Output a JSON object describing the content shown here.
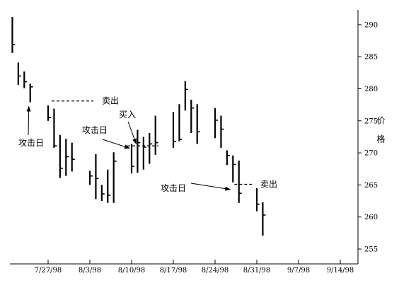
{
  "chart_data": {
    "type": "ohlc",
    "title": "",
    "xlabel": "",
    "ylabel": "价格",
    "ylim": [
      253,
      292
    ],
    "y_ticks": [
      255,
      260,
      265,
      270,
      275,
      280,
      285,
      290
    ],
    "y_tick_labels": [
      "255",
      "260",
      "265",
      "270",
      "275",
      "280",
      "285",
      "290"
    ],
    "x_tick_labels": [
      "7/27/98",
      "8/3/98",
      "8/10/98",
      "8/17/98",
      "8/24/98",
      "8/31/98",
      "9/7/98",
      "9/14/98"
    ],
    "x_ticks": [
      "1998-07-27",
      "1998-08-03",
      "1998-08-10",
      "1998-08-17",
      "1998-08-24",
      "1998-08-31",
      "1998-09-07",
      "1998-09-14"
    ],
    "x_range": [
      "1998-07-20",
      "1998-09-15"
    ],
    "grid": false,
    "bars": [
      {
        "date": "1998-07-21",
        "high": 291.2,
        "low": 285.6,
        "close": 286.9
      },
      {
        "date": "1998-07-22",
        "high": 284.1,
        "low": 280.6,
        "close": 282.0
      },
      {
        "date": "1998-07-23",
        "high": 282.7,
        "low": 280.1,
        "close": 281.1
      },
      {
        "date": "1998-07-24",
        "high": 280.8,
        "low": 277.9,
        "close": 280.3
      },
      {
        "date": "1998-07-27",
        "high": 277.4,
        "low": 275.0,
        "close": 275.5
      },
      {
        "date": "1998-07-28",
        "high": 276.9,
        "low": 270.8,
        "close": 271.1
      },
      {
        "date": "1998-07-29",
        "high": 272.8,
        "low": 266.1,
        "close": 267.6
      },
      {
        "date": "1998-07-30",
        "high": 272.2,
        "low": 266.4,
        "close": 269.4
      },
      {
        "date": "1998-07-31",
        "high": 271.6,
        "low": 267.1,
        "close": 269.0
      },
      {
        "date": "1998-08-03",
        "high": 267.2,
        "low": 265.0,
        "close": 266.4
      },
      {
        "date": "1998-08-04",
        "high": 269.8,
        "low": 262.8,
        "close": 266.0
      },
      {
        "date": "1998-08-05",
        "high": 265.0,
        "low": 262.5,
        "close": 263.6
      },
      {
        "date": "1998-08-06",
        "high": 267.4,
        "low": 262.2,
        "close": 263.4
      },
      {
        "date": "1998-08-07",
        "high": 270.1,
        "low": 262.2,
        "close": 268.7
      },
      {
        "date": "1998-08-10",
        "high": 271.4,
        "low": 266.8,
        "close": 267.9
      },
      {
        "date": "1998-08-11",
        "high": 273.6,
        "low": 266.9,
        "close": 271.6
      },
      {
        "date": "1998-08-12",
        "high": 272.5,
        "low": 267.4,
        "close": 270.9
      },
      {
        "date": "1998-08-13",
        "high": 273.1,
        "low": 268.3,
        "close": 271.4
      },
      {
        "date": "1998-08-14",
        "high": 275.8,
        "low": 269.7,
        "close": 271.6
      },
      {
        "date": "1998-08-17",
        "high": 276.4,
        "low": 270.8,
        "close": 271.8
      },
      {
        "date": "1998-08-18",
        "high": 277.6,
        "low": 271.8,
        "close": 272.1
      },
      {
        "date": "1998-08-19",
        "high": 281.2,
        "low": 276.6,
        "close": 279.9
      },
      {
        "date": "1998-08-20",
        "high": 278.3,
        "low": 273.1,
        "close": 277.0
      },
      {
        "date": "1998-08-21",
        "high": 277.6,
        "low": 271.4,
        "close": 273.3
      },
      {
        "date": "1998-08-24",
        "high": 277.0,
        "low": 272.3,
        "close": 275.1
      },
      {
        "date": "1998-08-25",
        "high": 275.8,
        "low": 270.8,
        "close": 273.7
      },
      {
        "date": "1998-08-26",
        "high": 270.4,
        "low": 268.1,
        "close": 269.6
      },
      {
        "date": "1998-08-27",
        "high": 269.6,
        "low": 265.4,
        "close": 268.2
      },
      {
        "date": "1998-08-28",
        "high": 268.8,
        "low": 262.2,
        "close": 263.7
      },
      {
        "date": "1998-08-31",
        "high": 264.5,
        "low": 260.9,
        "close": 262.0
      },
      {
        "date": "1998-09-01",
        "high": 262.3,
        "low": 257.1,
        "close": 260.3
      }
    ],
    "annotations": [
      {
        "text": "攻击日",
        "target_date": "1998-07-24"
      },
      {
        "text": "卖出",
        "level": 278.1
      },
      {
        "text": "攻击日",
        "target_date": "1998-08-10"
      },
      {
        "text": "买入",
        "level": 271.1
      },
      {
        "text": "攻击日",
        "target_date": "1998-08-27"
      },
      {
        "text": "卖出",
        "level": 265.1
      }
    ]
  }
}
